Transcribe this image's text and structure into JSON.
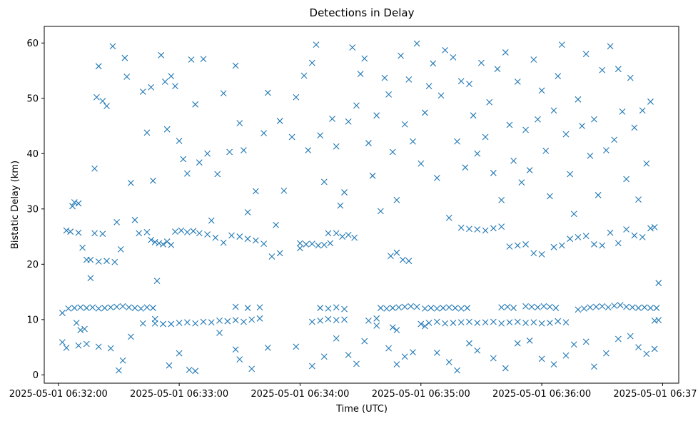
{
  "chart_data": {
    "type": "scatter",
    "title": "Detections in Delay",
    "xlabel": "Time (UTC)",
    "ylabel": "Bistatic Delay (km)",
    "x_ticks": [
      {
        "t": "06:32:00",
        "label": "2025-05-01 06:32:00"
      },
      {
        "t": "06:33:00",
        "label": "2025-05-01 06:33:00"
      },
      {
        "t": "06:34:00",
        "label": "2025-05-01 06:34:00"
      },
      {
        "t": "06:35:00",
        "label": "2025-05-01 06:35:00"
      },
      {
        "t": "06:36:00",
        "label": "2025-05-01 06:36:00"
      },
      {
        "t": "06:37:00",
        "label": "2025-05-01 06:37:00"
      }
    ],
    "y_ticks": [
      0,
      10,
      20,
      30,
      40,
      50,
      60
    ],
    "xlim": [
      "06:31:53",
      "06:37:08"
    ],
    "ylim": [
      -1.5,
      63
    ],
    "grid": false,
    "marker": "x",
    "color": "#1f77b4",
    "points": [
      [
        "06:32:02",
        11.2
      ],
      [
        "06:32:04",
        26.1
      ],
      [
        "06:32:06",
        25.9
      ],
      [
        "06:32:07",
        30.5
      ],
      [
        "06:32:08",
        31.2
      ],
      [
        "06:32:10",
        31.0
      ],
      [
        "06:32:12",
        23.0
      ],
      [
        "06:32:14",
        20.8
      ],
      [
        "06:32:16",
        17.5
      ],
      [
        "06:32:18",
        37.3
      ],
      [
        "06:32:19",
        50.2
      ],
      [
        "06:32:20",
        55.8
      ],
      [
        "06:32:22",
        49.5
      ],
      [
        "06:32:24",
        48.6
      ],
      [
        "06:32:27",
        59.4
      ],
      [
        "06:32:29",
        27.6
      ],
      [
        "06:32:31",
        22.7
      ],
      [
        "06:32:33",
        57.3
      ],
      [
        "06:32:34",
        53.9
      ],
      [
        "06:32:36",
        34.7
      ],
      [
        "06:32:38",
        28.0
      ],
      [
        "06:32:40",
        25.6
      ],
      [
        "06:32:42",
        51.2
      ],
      [
        "06:32:44",
        43.8
      ],
      [
        "06:32:46",
        52.0
      ],
      [
        "06:32:47",
        35.1
      ],
      [
        "06:32:49",
        17.0
      ],
      [
        "06:32:51",
        57.8
      ],
      [
        "06:32:53",
        53.0
      ],
      [
        "06:32:54",
        44.4
      ],
      [
        "06:32:56",
        54.0
      ],
      [
        "06:32:58",
        52.2
      ],
      [
        "06:33:00",
        42.3
      ],
      [
        "06:33:02",
        39.0
      ],
      [
        "06:33:04",
        36.4
      ],
      [
        "06:33:06",
        57.0
      ],
      [
        "06:33:08",
        48.9
      ],
      [
        "06:33:10",
        38.4
      ],
      [
        "06:33:12",
        57.1
      ],
      [
        "06:33:14",
        40.0
      ],
      [
        "06:33:16",
        27.9
      ],
      [
        "06:33:19",
        36.3
      ],
      [
        "06:33:22",
        50.9
      ],
      [
        "06:33:25",
        40.3
      ],
      [
        "06:33:28",
        55.9
      ],
      [
        "06:33:30",
        45.5
      ],
      [
        "06:33:32",
        40.6
      ],
      [
        "06:33:34",
        29.4
      ],
      [
        "06:33:38",
        33.2
      ],
      [
        "06:33:42",
        43.7
      ],
      [
        "06:33:44",
        51.0
      ],
      [
        "06:33:48",
        27.1
      ],
      [
        "06:33:50",
        45.9
      ],
      [
        "06:33:52",
        33.3
      ],
      [
        "06:33:56",
        43.0
      ],
      [
        "06:33:58",
        50.2
      ],
      [
        "06:34:00",
        22.9
      ],
      [
        "06:34:02",
        54.1
      ],
      [
        "06:34:04",
        40.6
      ],
      [
        "06:34:06",
        56.4
      ],
      [
        "06:34:08",
        59.7
      ],
      [
        "06:34:10",
        43.3
      ],
      [
        "06:34:12",
        34.9
      ],
      [
        "06:34:14",
        25.6
      ],
      [
        "06:34:16",
        46.3
      ],
      [
        "06:34:18",
        41.3
      ],
      [
        "06:34:20",
        30.6
      ],
      [
        "06:34:22",
        33.0
      ],
      [
        "06:34:24",
        45.8
      ],
      [
        "06:34:26",
        59.2
      ],
      [
        "06:34:28",
        48.7
      ],
      [
        "06:34:30",
        54.4
      ],
      [
        "06:34:32",
        57.2
      ],
      [
        "06:34:34",
        41.9
      ],
      [
        "06:34:36",
        36.0
      ],
      [
        "06:34:38",
        46.9
      ],
      [
        "06:34:40",
        29.6
      ],
      [
        "06:34:42",
        53.7
      ],
      [
        "06:34:44",
        50.7
      ],
      [
        "06:34:46",
        40.3
      ],
      [
        "06:34:48",
        31.6
      ],
      [
        "06:34:50",
        57.7
      ],
      [
        "06:34:52",
        45.3
      ],
      [
        "06:34:54",
        53.4
      ],
      [
        "06:34:56",
        42.2
      ],
      [
        "06:34:58",
        59.9
      ],
      [
        "06:35:00",
        38.2
      ],
      [
        "06:35:02",
        47.4
      ],
      [
        "06:35:04",
        52.2
      ],
      [
        "06:35:06",
        56.3
      ],
      [
        "06:35:08",
        35.6
      ],
      [
        "06:35:10",
        50.5
      ],
      [
        "06:35:12",
        58.7
      ],
      [
        "06:35:14",
        28.4
      ],
      [
        "06:35:16",
        57.4
      ],
      [
        "06:35:18",
        42.2
      ],
      [
        "06:35:20",
        53.1
      ],
      [
        "06:35:22",
        37.5
      ],
      [
        "06:35:24",
        52.6
      ],
      [
        "06:35:26",
        46.9
      ],
      [
        "06:35:28",
        40.0
      ],
      [
        "06:35:30",
        56.4
      ],
      [
        "06:35:32",
        43.0
      ],
      [
        "06:35:34",
        49.3
      ],
      [
        "06:35:36",
        36.5
      ],
      [
        "06:35:38",
        55.3
      ],
      [
        "06:35:40",
        31.6
      ],
      [
        "06:35:42",
        58.3
      ],
      [
        "06:35:44",
        45.2
      ],
      [
        "06:35:46",
        38.7
      ],
      [
        "06:35:48",
        53.0
      ],
      [
        "06:35:50",
        34.8
      ],
      [
        "06:35:52",
        44.3
      ],
      [
        "06:35:54",
        37.0
      ],
      [
        "06:35:56",
        57.0
      ],
      [
        "06:35:58",
        46.2
      ],
      [
        "06:36:00",
        51.4
      ],
      [
        "06:36:02",
        40.5
      ],
      [
        "06:36:04",
        32.3
      ],
      [
        "06:36:06",
        47.8
      ],
      [
        "06:36:08",
        54.0
      ],
      [
        "06:36:10",
        59.7
      ],
      [
        "06:36:12",
        43.5
      ],
      [
        "06:36:14",
        36.3
      ],
      [
        "06:36:16",
        29.1
      ],
      [
        "06:36:18",
        49.8
      ],
      [
        "06:36:20",
        45.0
      ],
      [
        "06:36:22",
        58.0
      ],
      [
        "06:36:24",
        39.6
      ],
      [
        "06:36:26",
        46.2
      ],
      [
        "06:36:28",
        32.5
      ],
      [
        "06:36:30",
        55.1
      ],
      [
        "06:36:32",
        40.6
      ],
      [
        "06:36:34",
        59.4
      ],
      [
        "06:36:36",
        42.5
      ],
      [
        "06:36:38",
        55.3
      ],
      [
        "06:36:40",
        47.6
      ],
      [
        "06:36:42",
        35.4
      ],
      [
        "06:36:44",
        53.7
      ],
      [
        "06:36:46",
        44.7
      ],
      [
        "06:36:48",
        31.7
      ],
      [
        "06:36:50",
        47.8
      ],
      [
        "06:36:52",
        38.2
      ],
      [
        "06:36:54",
        49.4
      ],
      [
        "06:36:56",
        26.7
      ],
      [
        "06:36:58",
        16.6
      ],
      [
        "06:32:02",
        5.9
      ],
      [
        "06:32:04",
        4.9
      ],
      [
        "06:32:10",
        5.3
      ],
      [
        "06:32:14",
        5.6
      ],
      [
        "06:32:20",
        5.1
      ],
      [
        "06:32:26",
        4.8
      ],
      [
        "06:32:30",
        0.8
      ],
      [
        "06:32:32",
        2.6
      ],
      [
        "06:32:36",
        6.9
      ],
      [
        "06:32:42",
        9.3
      ],
      [
        "06:32:48",
        10.1
      ],
      [
        "06:32:55",
        1.7
      ],
      [
        "06:33:00",
        3.9
      ],
      [
        "06:33:05",
        0.9
      ],
      [
        "06:33:08",
        0.7
      ],
      [
        "06:33:20",
        7.6
      ],
      [
        "06:33:28",
        4.6
      ],
      [
        "06:33:30",
        2.8
      ],
      [
        "06:33:36",
        1.1
      ],
      [
        "06:33:44",
        4.9
      ],
      [
        "06:33:58",
        5.1
      ],
      [
        "06:34:06",
        1.6
      ],
      [
        "06:34:12",
        3.3
      ],
      [
        "06:34:18",
        6.6
      ],
      [
        "06:34:24",
        3.6
      ],
      [
        "06:34:28",
        2.0
      ],
      [
        "06:34:32",
        6.1
      ],
      [
        "06:34:38",
        8.9
      ],
      [
        "06:34:44",
        4.8
      ],
      [
        "06:34:48",
        1.9
      ],
      [
        "06:34:52",
        3.3
      ],
      [
        "06:34:56",
        4.1
      ],
      [
        "06:35:02",
        8.8
      ],
      [
        "06:35:08",
        4.0
      ],
      [
        "06:35:14",
        2.3
      ],
      [
        "06:35:18",
        0.8
      ],
      [
        "06:35:24",
        5.7
      ],
      [
        "06:35:28",
        4.4
      ],
      [
        "06:35:36",
        3.0
      ],
      [
        "06:35:42",
        1.2
      ],
      [
        "06:35:48",
        5.7
      ],
      [
        "06:35:54",
        6.2
      ],
      [
        "06:36:00",
        2.9
      ],
      [
        "06:36:06",
        1.9
      ],
      [
        "06:36:12",
        3.5
      ],
      [
        "06:36:16",
        5.5
      ],
      [
        "06:36:22",
        6.0
      ],
      [
        "06:36:26",
        1.5
      ],
      [
        "06:36:32",
        3.9
      ],
      [
        "06:36:38",
        6.5
      ],
      [
        "06:36:44",
        7.0
      ],
      [
        "06:36:48",
        5.0
      ],
      [
        "06:36:52",
        3.8
      ],
      [
        "06:36:56",
        4.7
      ],
      [
        "06:32:05",
        12.0
      ],
      [
        "06:32:08",
        12.1
      ],
      [
        "06:32:11",
        12.2
      ],
      [
        "06:32:14",
        12.1
      ],
      [
        "06:32:17",
        12.2
      ],
      [
        "06:32:20",
        12.0
      ],
      [
        "06:32:23",
        12.1
      ],
      [
        "06:32:26",
        12.2
      ],
      [
        "06:32:29",
        12.3
      ],
      [
        "06:32:32",
        12.4
      ],
      [
        "06:32:35",
        12.2
      ],
      [
        "06:32:38",
        12.1
      ],
      [
        "06:32:41",
        12.0
      ],
      [
        "06:32:44",
        12.2
      ],
      [
        "06:32:47",
        12.1
      ],
      [
        "06:33:28",
        12.3
      ],
      [
        "06:33:34",
        12.1
      ],
      [
        "06:33:40",
        12.2
      ],
      [
        "06:34:10",
        12.1
      ],
      [
        "06:34:14",
        12.0
      ],
      [
        "06:34:18",
        12.2
      ],
      [
        "06:34:22",
        11.9
      ],
      [
        "06:34:40",
        12.1
      ],
      [
        "06:34:43",
        12.0
      ],
      [
        "06:34:46",
        12.1
      ],
      [
        "06:34:49",
        12.2
      ],
      [
        "06:34:52",
        12.3
      ],
      [
        "06:34:55",
        12.4
      ],
      [
        "06:34:58",
        12.3
      ],
      [
        "06:35:02",
        12.0
      ],
      [
        "06:35:05",
        12.1
      ],
      [
        "06:35:08",
        12.0
      ],
      [
        "06:35:11",
        12.1
      ],
      [
        "06:35:14",
        12.2
      ],
      [
        "06:35:17",
        12.1
      ],
      [
        "06:35:20",
        12.0
      ],
      [
        "06:35:23",
        12.1
      ],
      [
        "06:35:40",
        12.2
      ],
      [
        "06:35:43",
        12.3
      ],
      [
        "06:35:46",
        12.1
      ],
      [
        "06:35:52",
        12.4
      ],
      [
        "06:35:55",
        12.3
      ],
      [
        "06:35:58",
        12.2
      ],
      [
        "06:36:01",
        12.4
      ],
      [
        "06:36:04",
        12.3
      ],
      [
        "06:36:07",
        12.1
      ],
      [
        "06:36:18",
        11.8
      ],
      [
        "06:36:21",
        12.0
      ],
      [
        "06:36:24",
        12.2
      ],
      [
        "06:36:27",
        12.3
      ],
      [
        "06:36:30",
        12.4
      ],
      [
        "06:36:33",
        12.2
      ],
      [
        "06:36:36",
        12.5
      ],
      [
        "06:36:39",
        12.6
      ],
      [
        "06:36:42",
        12.3
      ],
      [
        "06:36:45",
        12.2
      ],
      [
        "06:36:48",
        12.1
      ],
      [
        "06:36:51",
        12.2
      ],
      [
        "06:36:54",
        12.1
      ],
      [
        "06:36:57",
        12.1
      ],
      [
        "06:32:09",
        9.4
      ],
      [
        "06:32:11",
        8.1
      ],
      [
        "06:32:13",
        8.3
      ],
      [
        "06:32:48",
        9.3
      ],
      [
        "06:32:52",
        9.2
      ],
      [
        "06:32:56",
        9.2
      ],
      [
        "06:33:00",
        9.4
      ],
      [
        "06:33:04",
        9.5
      ],
      [
        "06:33:08",
        9.3
      ],
      [
        "06:33:12",
        9.6
      ],
      [
        "06:33:16",
        9.5
      ],
      [
        "06:33:20",
        9.8
      ],
      [
        "06:33:24",
        9.7
      ],
      [
        "06:33:28",
        9.9
      ],
      [
        "06:33:32",
        9.6
      ],
      [
        "06:33:36",
        10.0
      ],
      [
        "06:33:40",
        10.2
      ],
      [
        "06:34:06",
        9.6
      ],
      [
        "06:34:10",
        9.8
      ],
      [
        "06:34:14",
        10.1
      ],
      [
        "06:34:18",
        9.9
      ],
      [
        "06:34:22",
        10.0
      ],
      [
        "06:34:34",
        9.8
      ],
      [
        "06:34:38",
        10.2
      ],
      [
        "06:34:46",
        8.6
      ],
      [
        "06:34:48",
        8.1
      ],
      [
        "06:35:00",
        9.2
      ],
      [
        "06:35:04",
        9.4
      ],
      [
        "06:35:08",
        9.6
      ],
      [
        "06:35:12",
        9.3
      ],
      [
        "06:35:16",
        9.4
      ],
      [
        "06:35:20",
        9.5
      ],
      [
        "06:35:24",
        9.6
      ],
      [
        "06:35:28",
        9.4
      ],
      [
        "06:35:32",
        9.5
      ],
      [
        "06:35:36",
        9.6
      ],
      [
        "06:35:40",
        9.3
      ],
      [
        "06:35:44",
        9.5
      ],
      [
        "06:35:48",
        9.6
      ],
      [
        "06:35:52",
        9.4
      ],
      [
        "06:35:56",
        9.5
      ],
      [
        "06:36:00",
        9.3
      ],
      [
        "06:36:04",
        9.4
      ],
      [
        "06:36:08",
        9.7
      ],
      [
        "06:36:12",
        9.5
      ],
      [
        "06:36:56",
        9.8
      ],
      [
        "06:36:58",
        9.9
      ],
      [
        "06:32:06",
        25.9
      ],
      [
        "06:32:10",
        25.7
      ],
      [
        "06:32:16",
        20.8
      ],
      [
        "06:32:20",
        20.5
      ],
      [
        "06:32:24",
        20.6
      ],
      [
        "06:32:28",
        20.4
      ],
      [
        "06:32:18",
        25.6
      ],
      [
        "06:32:22",
        25.5
      ],
      [
        "06:32:44",
        25.8
      ],
      [
        "06:32:46",
        24.4
      ],
      [
        "06:32:48",
        24.0
      ],
      [
        "06:32:50",
        23.8
      ],
      [
        "06:32:52",
        23.6
      ],
      [
        "06:32:54",
        24.1
      ],
      [
        "06:32:56",
        23.5
      ],
      [
        "06:32:58",
        25.9
      ],
      [
        "06:33:01",
        26.1
      ],
      [
        "06:33:04",
        25.8
      ],
      [
        "06:33:07",
        26.0
      ],
      [
        "06:33:10",
        25.6
      ],
      [
        "06:33:14",
        25.4
      ],
      [
        "06:33:18",
        24.8
      ],
      [
        "06:33:22",
        23.9
      ],
      [
        "06:33:26",
        25.2
      ],
      [
        "06:33:30",
        25.0
      ],
      [
        "06:33:34",
        24.6
      ],
      [
        "06:33:38",
        24.3
      ],
      [
        "06:33:42",
        23.7
      ],
      [
        "06:33:46",
        21.4
      ],
      [
        "06:33:50",
        22.0
      ],
      [
        "06:34:00",
        23.8
      ],
      [
        "06:34:03",
        23.6
      ],
      [
        "06:34:06",
        23.7
      ],
      [
        "06:34:09",
        23.4
      ],
      [
        "06:34:12",
        23.5
      ],
      [
        "06:34:15",
        23.8
      ],
      [
        "06:34:18",
        25.6
      ],
      [
        "06:34:21",
        25.0
      ],
      [
        "06:34:24",
        25.3
      ],
      [
        "06:34:27",
        24.8
      ],
      [
        "06:34:45",
        21.5
      ],
      [
        "06:34:48",
        22.1
      ],
      [
        "06:34:51",
        20.8
      ],
      [
        "06:34:54",
        20.6
      ],
      [
        "06:35:20",
        26.6
      ],
      [
        "06:35:24",
        26.4
      ],
      [
        "06:35:28",
        26.3
      ],
      [
        "06:35:32",
        26.1
      ],
      [
        "06:35:36",
        26.5
      ],
      [
        "06:35:40",
        26.8
      ],
      [
        "06:35:44",
        23.2
      ],
      [
        "06:35:48",
        23.4
      ],
      [
        "06:35:52",
        23.6
      ],
      [
        "06:35:56",
        22.0
      ],
      [
        "06:36:00",
        21.8
      ],
      [
        "06:36:06",
        23.1
      ],
      [
        "06:36:10",
        23.4
      ],
      [
        "06:36:14",
        24.6
      ],
      [
        "06:36:18",
        24.9
      ],
      [
        "06:36:22",
        25.1
      ],
      [
        "06:36:26",
        23.6
      ],
      [
        "06:36:30",
        23.4
      ],
      [
        "06:36:34",
        25.7
      ],
      [
        "06:36:38",
        23.8
      ],
      [
        "06:36:42",
        26.3
      ],
      [
        "06:36:46",
        25.2
      ],
      [
        "06:36:50",
        24.9
      ],
      [
        "06:36:54",
        26.5
      ]
    ]
  }
}
